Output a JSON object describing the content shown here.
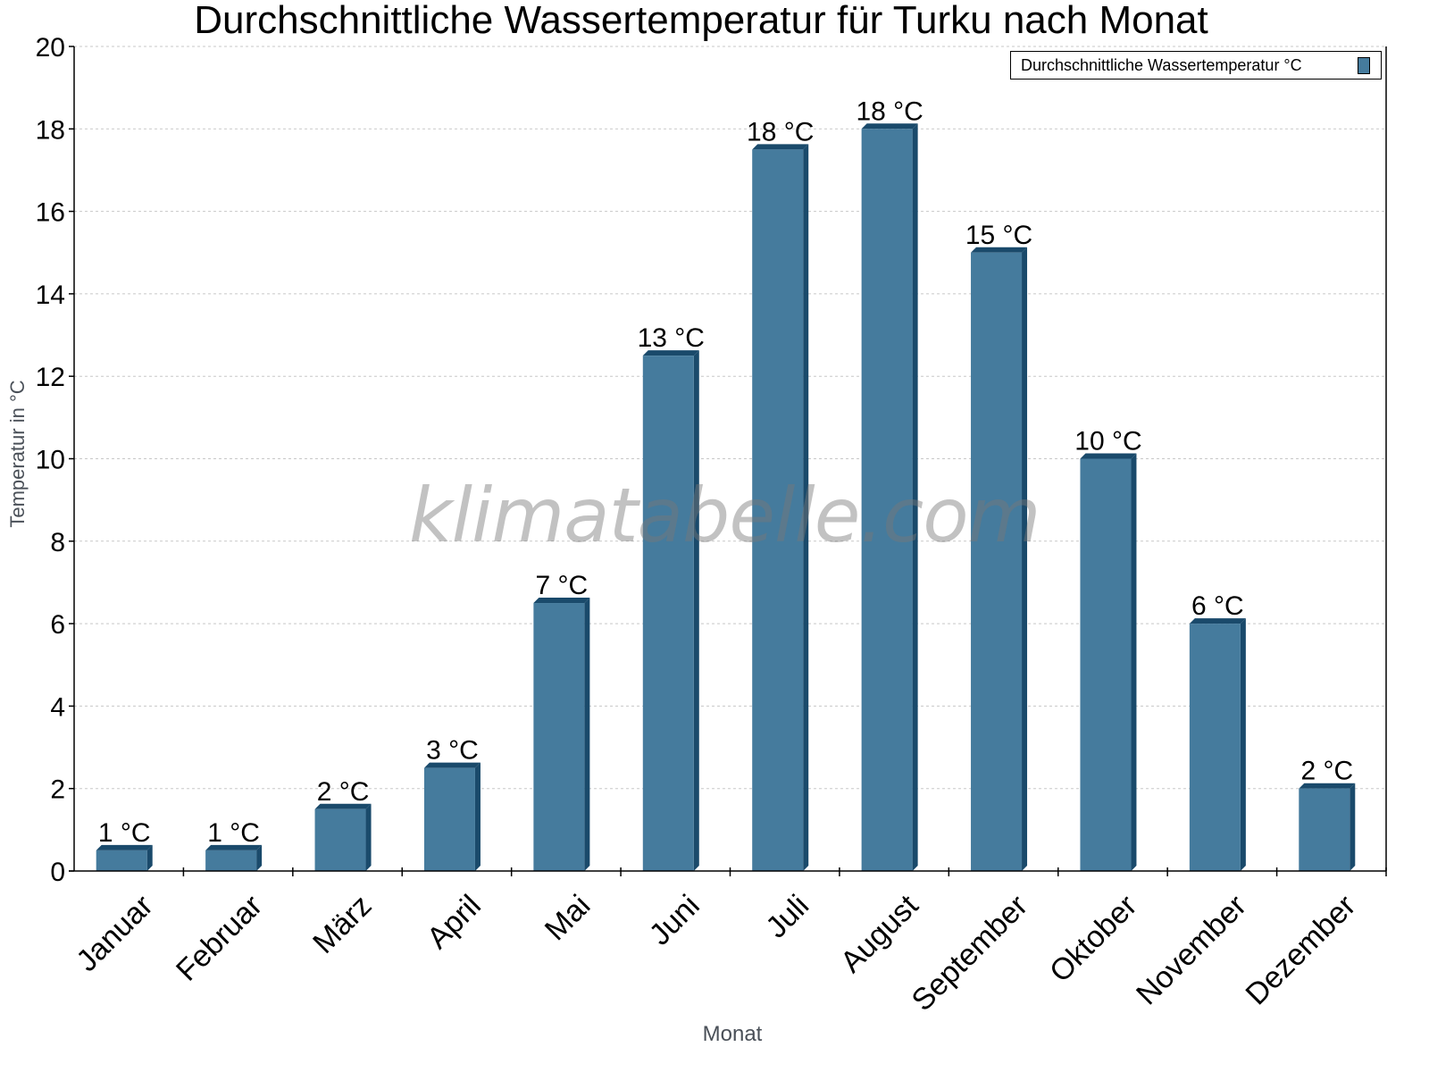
{
  "title": "Durchschnittliche Wassertemperatur für Turku nach Monat",
  "legend": {
    "label": "Durchschnittliche Wassertemperatur °C",
    "color": "#457b9d"
  },
  "axes": {
    "xlabel": "Monat",
    "ylabel": "Temperatur in °C"
  },
  "watermark": "klimatabelle.com",
  "colors": {
    "bar_front": "#457b9d",
    "bar_side": "#1a4a6b",
    "grid": "#c8c8c8",
    "axis": "#000000"
  },
  "chart_data": {
    "type": "bar",
    "title": "Durchschnittliche Wassertemperatur für Turku nach Monat",
    "xlabel": "Monat",
    "ylabel": "Temperatur in °C",
    "ylim": [
      0,
      20
    ],
    "yticks": [
      0,
      2,
      4,
      6,
      8,
      10,
      12,
      14,
      16,
      18,
      20
    ],
    "grid": true,
    "legend_position": "top-right",
    "categories": [
      "Januar",
      "Februar",
      "März",
      "April",
      "Mai",
      "Juni",
      "Juli",
      "August",
      "September",
      "Oktober",
      "November",
      "Dezember"
    ],
    "series": [
      {
        "name": "Durchschnittliche Wassertemperatur °C",
        "values": [
          0.5,
          0.5,
          1.5,
          2.5,
          6.5,
          12.5,
          17.5,
          18,
          15,
          10,
          6,
          2
        ],
        "data_labels": [
          "1 °C",
          "1 °C",
          "2 °C",
          "3 °C",
          "7 °C",
          "13 °C",
          "18 °C",
          "18 °C",
          "15 °C",
          "10 °C",
          "6 °C",
          "2 °C"
        ]
      }
    ]
  }
}
